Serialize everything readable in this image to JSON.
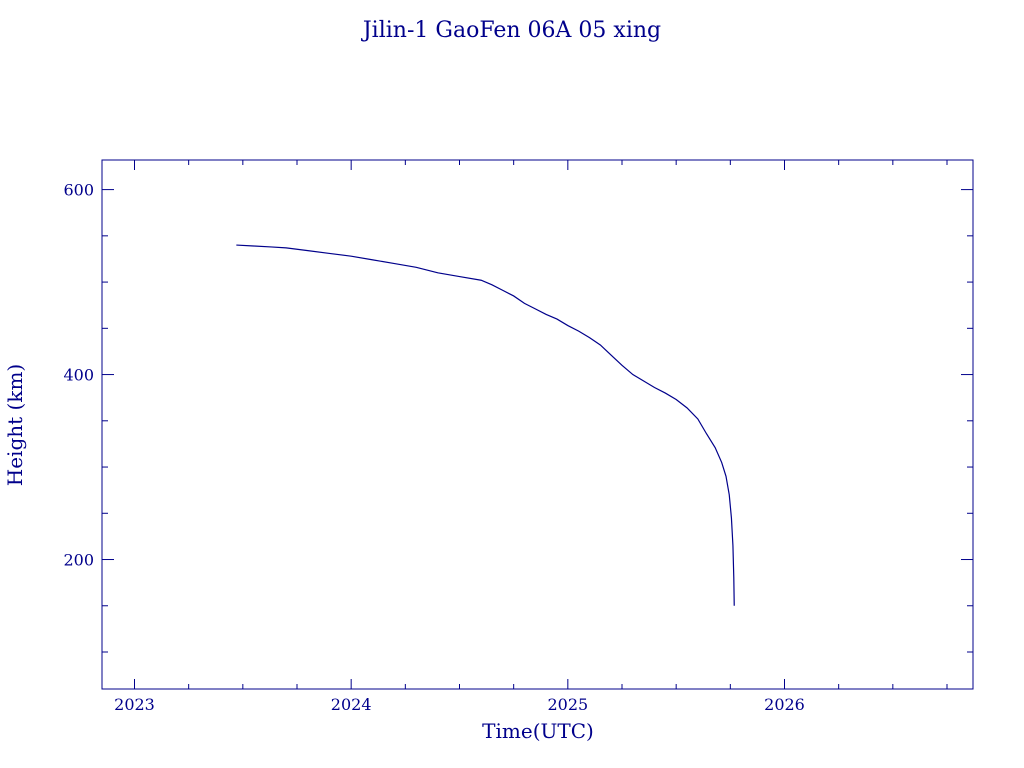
{
  "chart_data": {
    "type": "line",
    "title": "Jilin-1 GaoFen 06A 05 xing",
    "xlabel": "Time(UTC)",
    "ylabel": "Height (km)",
    "xlim": [
      2022.85,
      2026.87
    ],
    "ylim": [
      60,
      632
    ],
    "x_ticks": [
      2023,
      2024,
      2025,
      2026
    ],
    "x_minor_step": 0.25,
    "y_ticks": [
      200,
      400,
      600
    ],
    "y_minor_step": 50,
    "grid": false,
    "color": "#00008b",
    "series": [
      {
        "x": [
          2023.47,
          2023.55,
          2023.63,
          2023.7,
          2023.8,
          2023.9,
          2024.0,
          2024.1,
          2024.2,
          2024.3,
          2024.4,
          2024.5,
          2024.6,
          2024.65,
          2024.7,
          2024.75,
          2024.8,
          2024.85,
          2024.9,
          2024.95,
          2025.0,
          2025.05,
          2025.1,
          2025.15,
          2025.2,
          2025.25,
          2025.3,
          2025.35,
          2025.4,
          2025.45,
          2025.5,
          2025.55,
          2025.6,
          2025.64,
          2025.68,
          2025.71,
          2025.73,
          2025.745,
          2025.755,
          2025.762,
          2025.766,
          2025.768
        ],
        "y": [
          540,
          539,
          538,
          537,
          534,
          531,
          528,
          524,
          520,
          516,
          510,
          506,
          502,
          497,
          491,
          485,
          477,
          471,
          465,
          460,
          453,
          447,
          440,
          432,
          421,
          410,
          400,
          393,
          386,
          380,
          373,
          364,
          352,
          336,
          321,
          305,
          290,
          270,
          245,
          215,
          180,
          150
        ]
      }
    ]
  }
}
